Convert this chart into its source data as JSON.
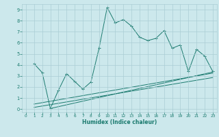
{
  "x": [
    1,
    2,
    3,
    4,
    5,
    6,
    7,
    8,
    9,
    10,
    11,
    12,
    13,
    14,
    15,
    16,
    17,
    18,
    19,
    20,
    21,
    22,
    23
  ],
  "main_line": [
    4.1,
    3.3,
    0.05,
    1.7,
    3.2,
    2.5,
    1.8,
    2.45,
    5.5,
    9.2,
    7.8,
    8.1,
    7.5,
    6.5,
    6.2,
    6.4,
    7.1,
    5.5,
    5.8,
    3.4,
    5.4,
    4.8,
    3.4
  ],
  "trend_lines": [
    [
      [
        1,
        0.45
      ],
      [
        23,
        3.25
      ]
    ],
    [
      [
        1,
        0.15
      ],
      [
        23,
        2.85
      ]
    ],
    [
      [
        3,
        0.05
      ],
      [
        23,
        3.35
      ]
    ]
  ],
  "line_color": "#1a7a6e",
  "bg_color": "#cce8ec",
  "grid_color": "#aacdd4",
  "xlabel": "Humidex (Indice chaleur)",
  "ylim": [
    -0.3,
    9.5
  ],
  "xlim": [
    -0.5,
    23.5
  ],
  "yticks": [
    0,
    1,
    2,
    3,
    4,
    5,
    6,
    7,
    8,
    9
  ],
  "xticks": [
    0,
    1,
    2,
    3,
    4,
    5,
    6,
    7,
    8,
    9,
    10,
    11,
    12,
    13,
    14,
    15,
    16,
    17,
    18,
    19,
    20,
    21,
    22,
    23
  ]
}
